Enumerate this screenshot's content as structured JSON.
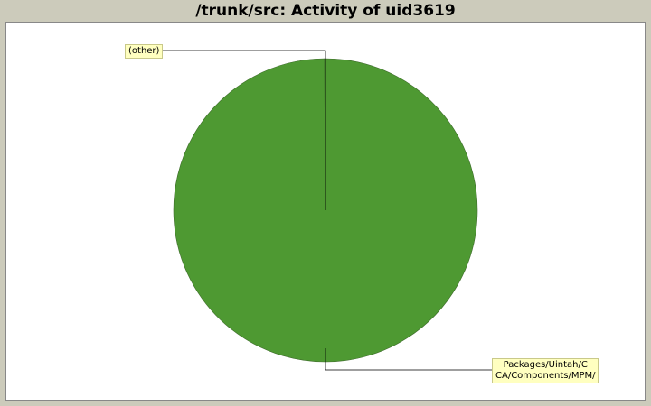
{
  "title": "/trunk/src: Activity of uid3619",
  "chart_data": {
    "type": "pie",
    "title": "/trunk/src: Activity of uid3619",
    "slices": [
      {
        "label": "Packages/Uintah/C\nCA/Components/MPM/",
        "value": 99.9,
        "color": "#4e9932"
      },
      {
        "label": "(other)",
        "value": 0.1,
        "color": "#4e9932"
      }
    ]
  }
}
